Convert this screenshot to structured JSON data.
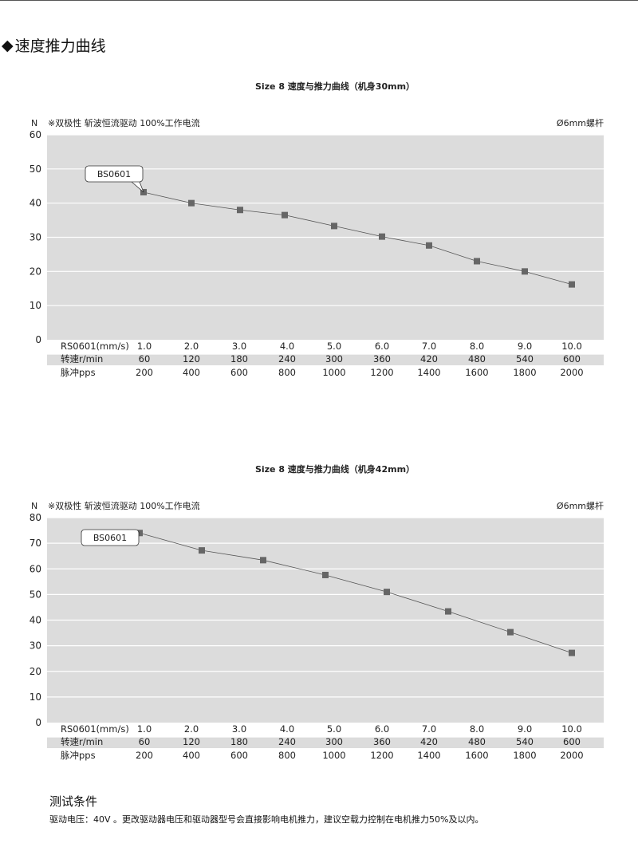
{
  "section": {
    "marker": "◆",
    "title": "速度推力曲线"
  },
  "chart_data": [
    {
      "type": "line",
      "title": "Size 8  速度与推力曲线（机身30mm）",
      "ylabel": "N",
      "note_left": "※双极性 斩波恒流驱动 100%工作电流",
      "note_right": "Ø6mm螺杆",
      "ylim": [
        0,
        60
      ],
      "yticks": [
        0,
        10,
        20,
        30,
        40,
        50,
        60
      ],
      "grid": true,
      "series": [
        {
          "name": "BS0601",
          "values": [
            43.2,
            40.0,
            38.0,
            36.5,
            33.3,
            30.2,
            27.6,
            23.0,
            20.0,
            16.2
          ]
        }
      ],
      "table_rows": [
        {
          "label": "RS0601(mm/s)",
          "values": [
            "1.0",
            "2.0",
            "3.0",
            "4.0",
            "5.0",
            "6.0",
            "7.0",
            "8.0",
            "9.0",
            "10.0"
          ]
        },
        {
          "label": "转速r/min",
          "values": [
            "60",
            "120",
            "180",
            "240",
            "300",
            "360",
            "420",
            "480",
            "540",
            "600"
          ]
        },
        {
          "label": "脉冲pps",
          "values": [
            "200",
            "400",
            "600",
            "800",
            "1000",
            "1200",
            "1400",
            "1600",
            "1800",
            "2000"
          ]
        }
      ]
    },
    {
      "type": "line",
      "title": "Size 8  速度与推力曲线（机身42mm）",
      "ylabel": "N",
      "note_left": "※双极性 斩波恒流驱动 100%工作电流",
      "note_right": "Ø6mm螺杆",
      "ylim": [
        0,
        80
      ],
      "yticks": [
        0,
        10,
        20,
        30,
        40,
        50,
        60,
        70,
        80
      ],
      "grid": true,
      "series": [
        {
          "name": "BS0601",
          "values": [
            74.0,
            67.2,
            63.4,
            57.6,
            51.0,
            43.4,
            35.3,
            27.2
          ]
        }
      ],
      "table_rows": [
        {
          "label": "RS0601(mm/s)",
          "values": [
            "1.0",
            "2.0",
            "3.0",
            "4.0",
            "5.0",
            "6.0",
            "7.0",
            "8.0",
            "9.0",
            "10.0"
          ]
        },
        {
          "label": "转速r/min",
          "values": [
            "60",
            "120",
            "180",
            "240",
            "300",
            "360",
            "420",
            "480",
            "540",
            "600"
          ]
        },
        {
          "label": "脉冲pps",
          "values": [
            "200",
            "400",
            "600",
            "800",
            "1000",
            "1200",
            "1400",
            "1600",
            "1800",
            "2000"
          ]
        }
      ]
    }
  ],
  "footer": {
    "title": "测试条件",
    "text": "驱动电压：40V 。更改驱动器电压和驱动器型号会直接影响电机推力，建议空载力控制在电机推力50%及以内。"
  }
}
